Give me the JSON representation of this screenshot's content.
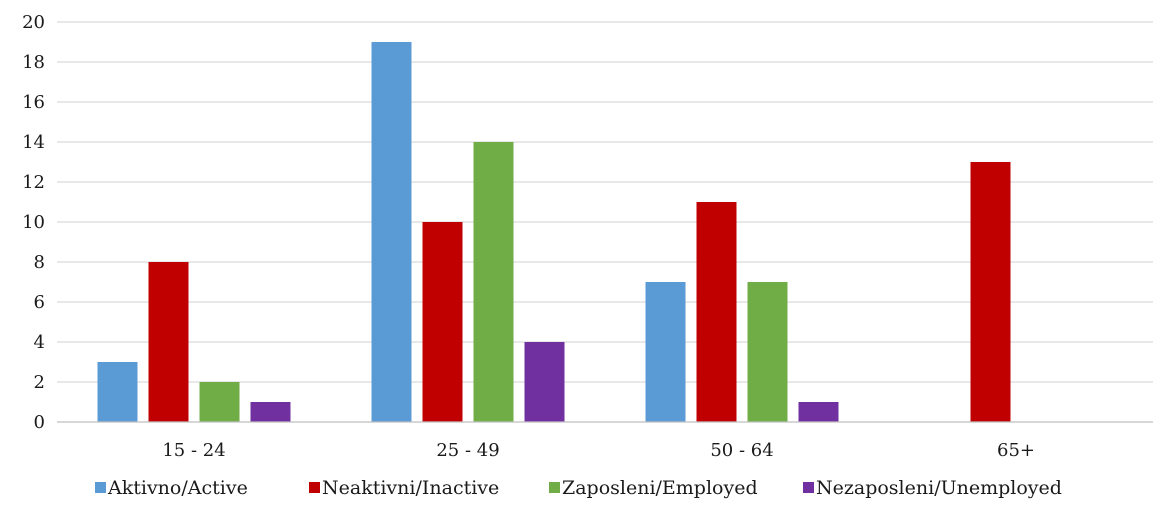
{
  "chart_data": {
    "type": "bar",
    "categories": [
      "15 - 24",
      "25 - 49",
      "50 - 64",
      "65+"
    ],
    "series": [
      {
        "name": "Aktivno/Active",
        "color": "#5b9bd5",
        "values": [
          3,
          19,
          7,
          0
        ]
      },
      {
        "name": "Neaktivni/Inactive",
        "color": "#c00000",
        "values": [
          8,
          10,
          11,
          13
        ]
      },
      {
        "name": "Zaposleni/Employed",
        "color": "#70ad47",
        "values": [
          2,
          14,
          7,
          0
        ]
      },
      {
        "name": "Nezaposleni/Unemployed",
        "color": "#7030a0",
        "values": [
          1,
          4,
          1,
          0
        ]
      }
    ],
    "ylim": [
      0,
      20
    ],
    "yticks": [
      "0",
      "2",
      "4",
      "6",
      "8",
      "10",
      "12",
      "14",
      "16",
      "18",
      "20"
    ],
    "grid": true,
    "legend_position": "bottom"
  }
}
